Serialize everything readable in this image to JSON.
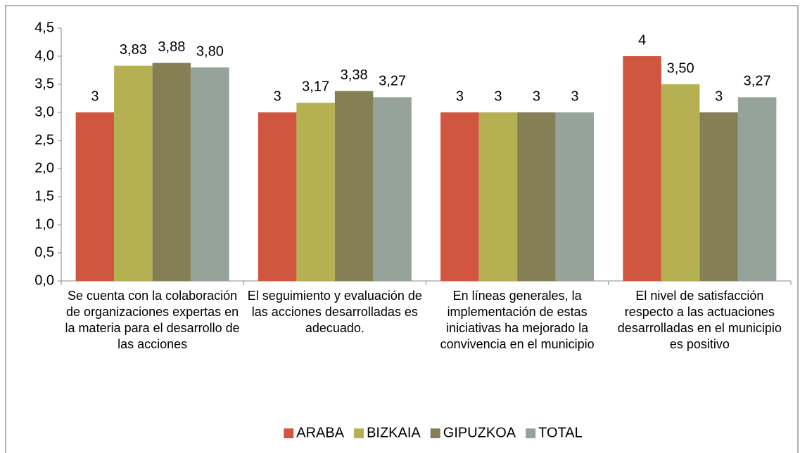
{
  "chart_data": {
    "type": "bar",
    "categories": [
      "Se cuenta con la colaboración de organizaciones expertas en la materia para el desarrollo de las acciones",
      "El seguimiento y evaluación de las acciones desarrolladas es adecuado.",
      "En líneas generales, la implementación de estas iniciativas ha mejorado la convivencia en el municipio",
      "El nivel de satisfacción respecto a las actuaciones desarrolladas en el municipio es positivo"
    ],
    "series": [
      {
        "name": "ARABA",
        "color": "#d0563f",
        "values": [
          3,
          3,
          3,
          4
        ],
        "value_labels": [
          "3",
          "3",
          "3",
          "4"
        ]
      },
      {
        "name": "BIZKAIA",
        "color": "#b5b052",
        "values": [
          3.83,
          3.17,
          3,
          3.5
        ],
        "value_labels": [
          "3,83",
          "3,17",
          "3",
          "3,50"
        ]
      },
      {
        "name": "GIPUZKOA",
        "color": "#857f55",
        "values": [
          3.88,
          3.38,
          3,
          3
        ],
        "value_labels": [
          "3,88",
          "3,38",
          "3",
          "3"
        ]
      },
      {
        "name": "TOTAL",
        "color": "#95a39a",
        "values": [
          3.8,
          3.27,
          3,
          3.27
        ],
        "value_labels": [
          "3,80",
          "3,27",
          "3",
          "3,27"
        ]
      }
    ],
    "ylim": [
      0,
      4.5
    ],
    "yticks": [
      {
        "value": 0,
        "label": "0,0"
      },
      {
        "value": 0.5,
        "label": "0,5"
      },
      {
        "value": 1,
        "label": "1,0"
      },
      {
        "value": 1.5,
        "label": "1,5"
      },
      {
        "value": 2,
        "label": "2,0"
      },
      {
        "value": 2.5,
        "label": "2,5"
      },
      {
        "value": 3,
        "label": "3,0"
      },
      {
        "value": 3.5,
        "label": "3,5"
      },
      {
        "value": 4,
        "label": "4,0"
      },
      {
        "value": 4.5,
        "label": "4,5"
      }
    ],
    "legend": "bottom"
  }
}
